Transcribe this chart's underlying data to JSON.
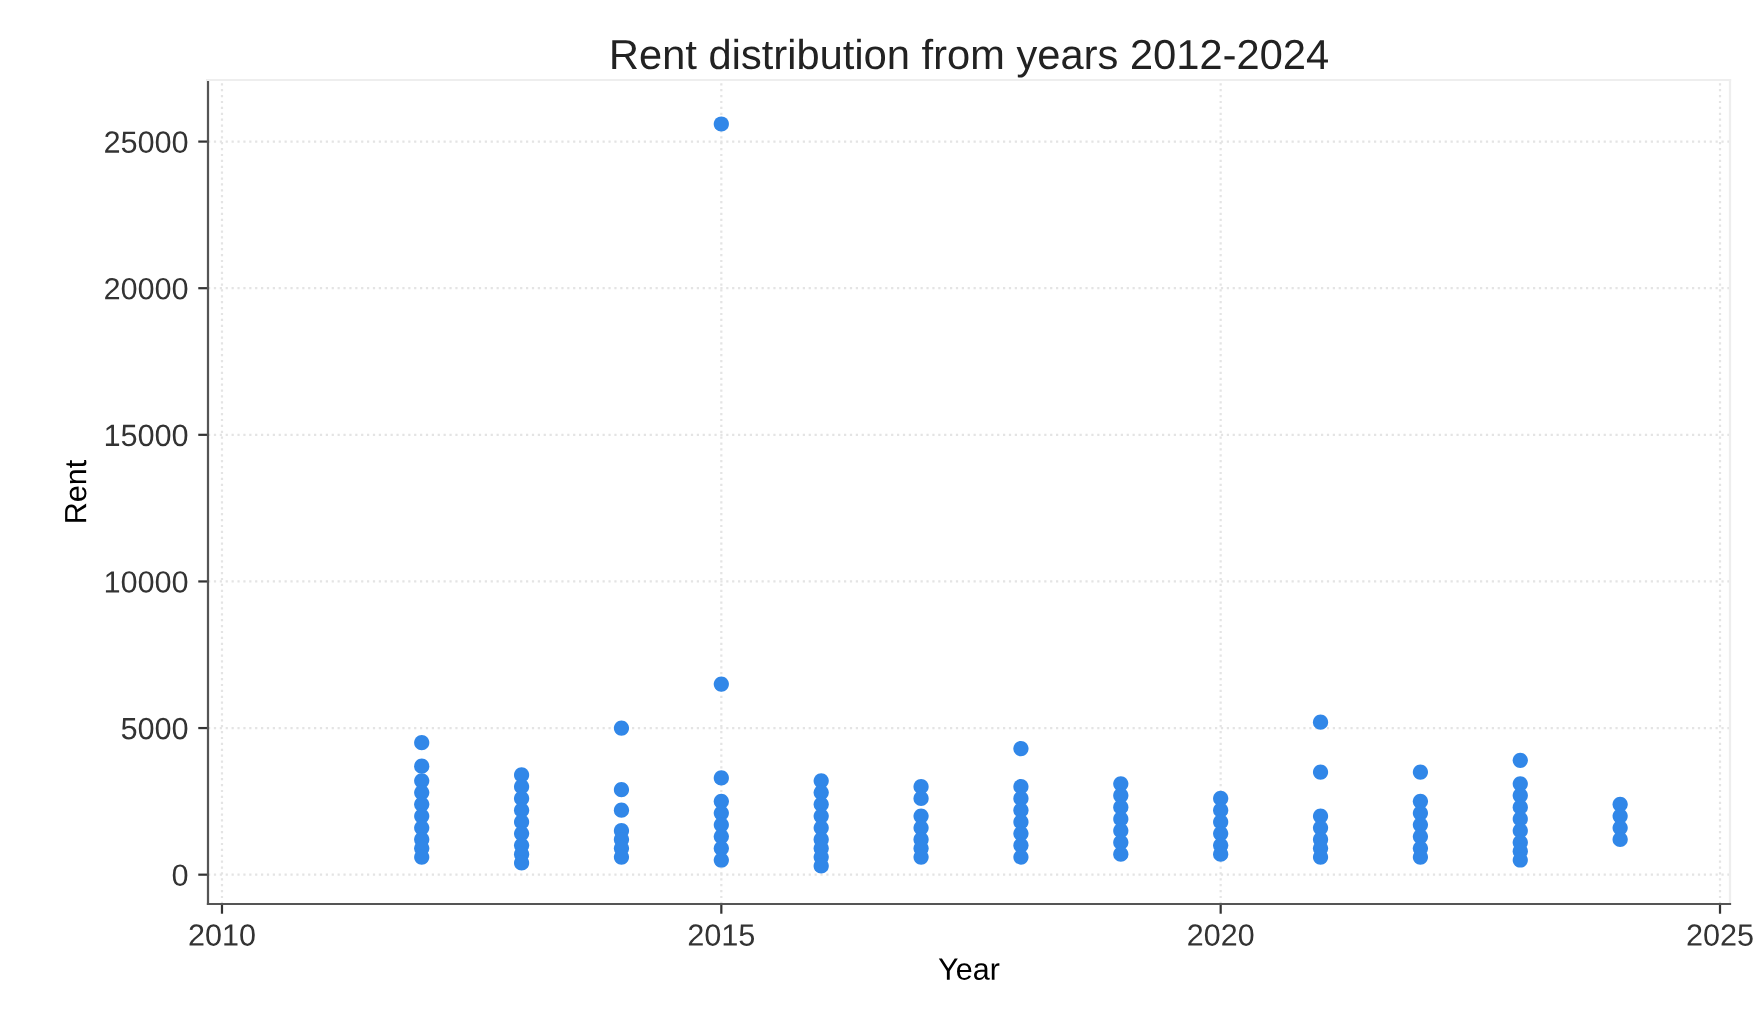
{
  "chart_data": {
    "type": "scatter",
    "title": "Rent distribution from years 2012-2024",
    "xlabel": "Year",
    "ylabel": "Rent",
    "series": [
      {
        "color": "#3187e8",
        "x": [
          2012,
          2012,
          2012,
          2012,
          2012,
          2012,
          2012,
          2012,
          2012,
          2012,
          2013,
          2013,
          2013,
          2013,
          2013,
          2013,
          2013,
          2013,
          2013,
          2014,
          2014,
          2014,
          2014,
          2014,
          2014,
          2014,
          2015,
          2015,
          2015,
          2015,
          2015,
          2015,
          2015,
          2015,
          2015,
          2016,
          2016,
          2016,
          2016,
          2016,
          2016,
          2016,
          2016,
          2016,
          2017,
          2017,
          2017,
          2017,
          2017,
          2017,
          2017,
          2018,
          2018,
          2018,
          2018,
          2018,
          2018,
          2018,
          2018,
          2019,
          2019,
          2019,
          2019,
          2019,
          2019,
          2019,
          2020,
          2020,
          2020,
          2020,
          2020,
          2020,
          2021,
          2021,
          2021,
          2021,
          2021,
          2021,
          2021,
          2022,
          2022,
          2022,
          2022,
          2022,
          2022,
          2022,
          2023,
          2023,
          2023,
          2023,
          2023,
          2023,
          2023,
          2023,
          2023,
          2024,
          2024,
          2024,
          2024
        ],
        "values": [
          4500,
          3700,
          3200,
          2800,
          2400,
          2000,
          1600,
          1200,
          900,
          600,
          3400,
          3000,
          2600,
          2200,
          1800,
          1400,
          1000,
          700,
          400,
          5000,
          2900,
          2200,
          1500,
          1200,
          900,
          600,
          25600,
          6500,
          3300,
          2500,
          2100,
          1700,
          1300,
          900,
          500,
          3200,
          2800,
          2400,
          2000,
          1600,
          1200,
          900,
          600,
          300,
          3000,
          2600,
          2000,
          1600,
          1200,
          900,
          600,
          4300,
          3000,
          2600,
          2200,
          1800,
          1400,
          1000,
          600,
          3100,
          2700,
          2300,
          1900,
          1500,
          1100,
          700,
          2600,
          2200,
          1800,
          1400,
          1000,
          700,
          5200,
          3500,
          2000,
          1600,
          1200,
          900,
          600,
          3500,
          2500,
          2100,
          1700,
          1300,
          900,
          600,
          3900,
          3100,
          2700,
          2300,
          1900,
          1500,
          1100,
          800,
          500,
          2400,
          2000,
          1600,
          1200
        ]
      }
    ],
    "xlim": [
      2009.86,
      2025.1
    ],
    "xticks": [
      2010,
      2015,
      2020,
      2025
    ],
    "ylim": [
      -1000,
      27100
    ],
    "yticks": [
      0,
      5000,
      10000,
      15000,
      20000,
      25000
    ],
    "grid": true,
    "marker": "circle"
  }
}
